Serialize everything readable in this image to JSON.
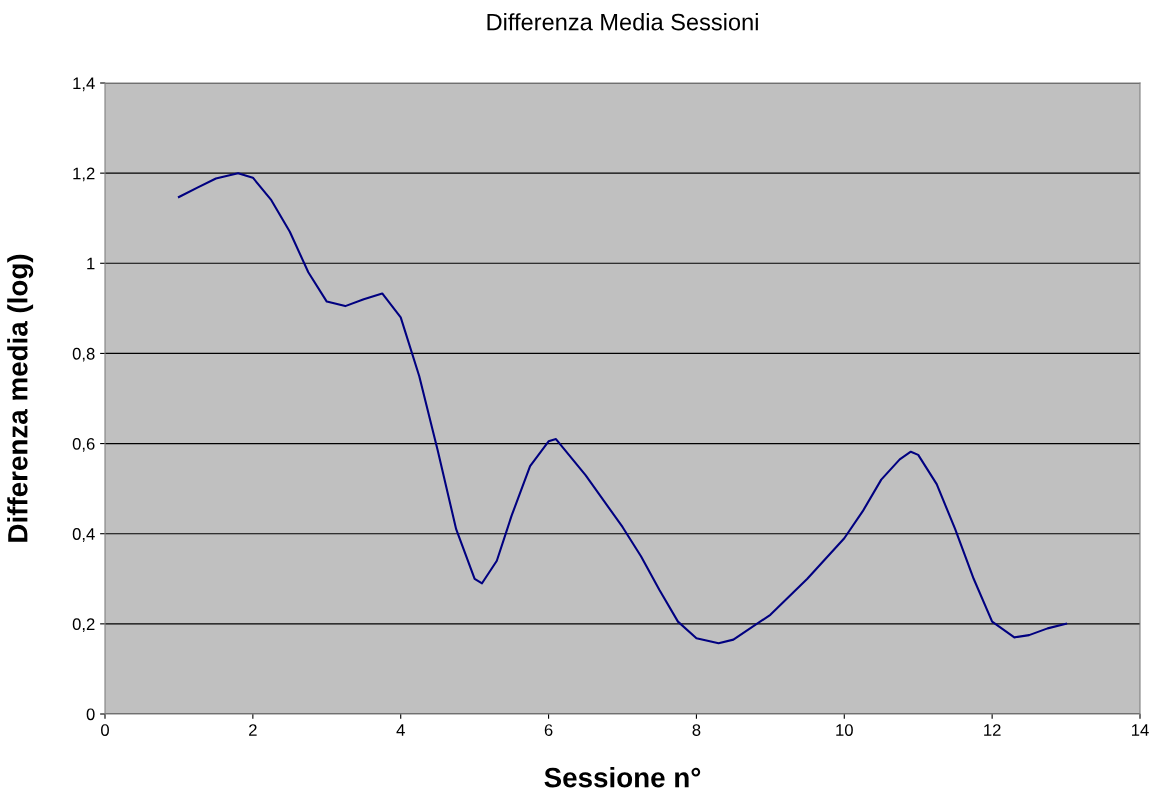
{
  "chart_data": {
    "type": "line",
    "title": "Differenza Media Sessioni",
    "xlabel": "Sessione n°",
    "ylabel": "Differenza media (log)",
    "x": [
      1,
      1.25,
      1.5,
      1.8,
      2,
      2.25,
      2.5,
      2.75,
      3,
      3.25,
      3.5,
      3.75,
      4,
      4.25,
      4.5,
      4.75,
      5,
      5.1,
      5.3,
      5.5,
      5.75,
      6,
      6.1,
      6.5,
      7,
      7.25,
      7.5,
      7.75,
      8,
      8.3,
      8.5,
      9,
      9.5,
      10,
      10.25,
      10.5,
      10.75,
      10.9,
      11,
      11.25,
      11.5,
      11.75,
      12,
      12.3,
      12.5,
      12.75,
      13
    ],
    "series": [
      {
        "color": "#000080",
        "values": [
          1.147,
          1.168,
          1.188,
          1.2,
          1.19,
          1.14,
          1.07,
          0.98,
          0.915,
          0.905,
          0.92,
          0.933,
          0.88,
          0.75,
          0.585,
          0.41,
          0.3,
          0.29,
          0.34,
          0.44,
          0.55,
          0.605,
          0.61,
          0.53,
          0.415,
          0.35,
          0.275,
          0.205,
          0.168,
          0.157,
          0.165,
          0.22,
          0.3,
          0.39,
          0.45,
          0.52,
          0.565,
          0.582,
          0.575,
          0.51,
          0.41,
          0.3,
          0.205,
          0.17,
          0.175,
          0.19,
          0.2
        ]
      }
    ],
    "xlim": [
      0,
      14
    ],
    "xticks": [
      0,
      2,
      4,
      6,
      8,
      10,
      12,
      14
    ],
    "ylim": [
      0,
      1.4
    ],
    "yticks": [
      0,
      {
        "value": 0.2,
        "label": "0,2"
      },
      {
        "value": 0.4,
        "label": "0,4"
      },
      {
        "value": 0.6,
        "label": "0,6"
      },
      {
        "value": 0.8,
        "label": "0,8"
      },
      {
        "value": 1,
        "label": "1"
      },
      {
        "value": 1.2,
        "label": "1,2"
      },
      {
        "value": 1.4,
        "label": "1,4"
      }
    ],
    "grid": "y",
    "marker": "none",
    "line_style": "solid"
  }
}
